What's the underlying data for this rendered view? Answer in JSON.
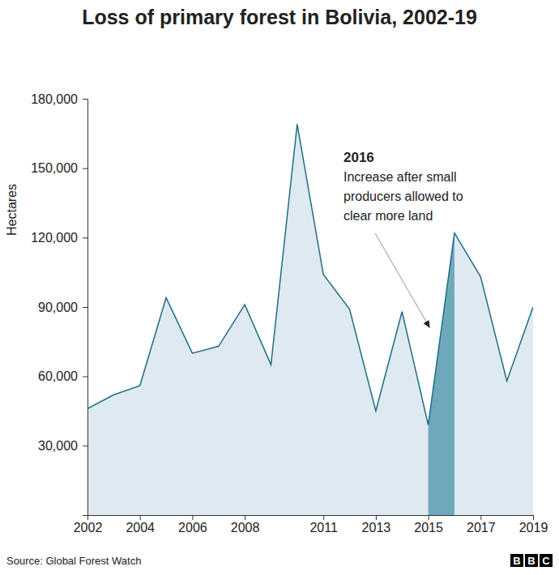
{
  "chart_data": {
    "type": "area",
    "title": "Loss of primary forest in Bolivia, 2002-19",
    "y_label": "Hectares",
    "x": [
      2002,
      2003,
      2004,
      2005,
      2006,
      2007,
      2008,
      2009,
      2010,
      2011,
      2012,
      2013,
      2014,
      2015,
      2016,
      2017,
      2018,
      2019
    ],
    "values": [
      46000,
      52000,
      56000,
      94000,
      70000,
      73000,
      91000,
      65000,
      169000,
      104000,
      89000,
      45000,
      88000,
      39000,
      122000,
      103000,
      58000,
      90000
    ],
    "color": "#1f6e82",
    "xlim": [
      2002,
      2019
    ],
    "xticks": [
      2002,
      2004,
      2006,
      2008,
      2011,
      2013,
      2015,
      2017,
      2019
    ],
    "ylim": [
      0,
      180000
    ],
    "yticks": [
      {
        "value": 30000,
        "label": "30,000"
      },
      {
        "value": 60000,
        "label": "60,000"
      },
      {
        "value": 90000,
        "label": "90,000"
      },
      {
        "value": 120000,
        "label": "120,000"
      },
      {
        "value": 150000,
        "label": "150,000"
      },
      {
        "value": 180000,
        "label": "180,000"
      }
    ],
    "grid": false,
    "annotations": [
      {
        "label": "2016",
        "text": [
          "Increase after small",
          "producers allowed to",
          "clear more land"
        ],
        "x": [
          2015,
          2016
        ]
      }
    ],
    "source": "Source: Global Forest Watch",
    "logo": [
      "B",
      "B",
      "C"
    ]
  }
}
